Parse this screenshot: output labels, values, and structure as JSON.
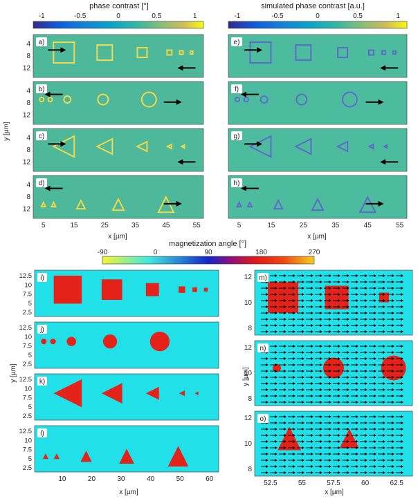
{
  "top_left": {
    "colorbar_title": "phase contrast [°]",
    "colorbar_ticks": [
      "-1",
      "-0.5",
      "0",
      "0.5",
      "1"
    ],
    "xlabel": "x  [µm]",
    "ylabel": "y  [µm]",
    "xticks": [
      "5",
      "15",
      "25",
      "35",
      "45",
      "55"
    ],
    "yticks": [
      "4",
      "8",
      "12"
    ],
    "panels": [
      {
        "label": "a)",
        "shape": "square",
        "arrow1": "right",
        "arrow2": "left"
      },
      {
        "label": "b)",
        "shape": "circle",
        "arrow1": "left",
        "arrow2": "right"
      },
      {
        "label": "c)",
        "shape": "triangle-left",
        "arrow1": "right",
        "arrow2": "left"
      },
      {
        "label": "d)",
        "shape": "triangle-up",
        "arrow1": "left",
        "arrow2": "right"
      }
    ]
  },
  "top_right": {
    "colorbar_title": "simulated phase contrast [a.u.]",
    "colorbar_ticks": [
      "-1",
      "-0.5",
      "0",
      "0.5",
      "1"
    ],
    "xlabel": "x  [µm]",
    "xticks": [
      "5",
      "15",
      "25",
      "35",
      "45",
      "55"
    ],
    "panels": [
      {
        "label": "e)",
        "shape": "square"
      },
      {
        "label": "f)",
        "shape": "circle"
      },
      {
        "label": "g)",
        "shape": "triangle-left"
      },
      {
        "label": "h)",
        "shape": "triangle-up"
      }
    ]
  },
  "middle_colorbar": {
    "title": "magnetization angle [°]",
    "ticks": [
      "-90",
      "0",
      "90",
      "180",
      "270"
    ],
    "colors": [
      "#e8e800",
      "#00e0e8",
      "#1020c0",
      "#e01010",
      "#f0c020"
    ]
  },
  "bottom_left": {
    "xlabel": "x [µm]",
    "ylabel": "y [µm]",
    "xticks": [
      "10",
      "20",
      "30",
      "40",
      "50",
      "60"
    ],
    "yticks": [
      "12.5",
      "10",
      "7.5",
      "5",
      "2.5"
    ],
    "panels": [
      {
        "label": "i)",
        "shape": "square"
      },
      {
        "label": "j)",
        "shape": "circle"
      },
      {
        "label": "k)",
        "shape": "triangle-left"
      },
      {
        "label": "l)",
        "shape": "triangle-up"
      }
    ]
  },
  "bottom_right": {
    "xlabel": "x [µm]",
    "ylabel": "y [µm]",
    "xticks": [
      "52.5",
      "55",
      "57.5",
      "60",
      "62.5"
    ],
    "yticks": [
      "12",
      "10",
      "8"
    ],
    "panels": [
      {
        "label": "m)",
        "shape": "square"
      },
      {
        "label": "n)",
        "shape": "circle"
      },
      {
        "label": "o)",
        "shape": "triangle-up"
      }
    ]
  },
  "chart_data": [
    {
      "type": "heatmap",
      "name": "measured phase contrast maps a)-d)",
      "colorbar_range": [
        -1,
        1
      ],
      "x_ticks": [
        5,
        15,
        25,
        35,
        45,
        55
      ],
      "y_ticks": [
        4,
        8,
        12
      ]
    },
    {
      "type": "heatmap",
      "name": "simulated phase contrast maps e)-h)",
      "colorbar_range": [
        -1,
        1
      ],
      "x_ticks": [
        5,
        15,
        25,
        35,
        45,
        55
      ]
    },
    {
      "type": "heatmap",
      "name": "magnetization angle maps i)-l)",
      "colorbar_range": [
        -90,
        270
      ],
      "x_ticks": [
        10,
        20,
        30,
        40,
        50,
        60
      ],
      "y_ticks": [
        2.5,
        5,
        7.5,
        10,
        12.5
      ]
    },
    {
      "type": "heatmap",
      "name": "magnetization vector maps m)-o)",
      "x_ticks": [
        52.5,
        55,
        57.5,
        60,
        62.5
      ],
      "y_ticks": [
        8,
        10,
        12
      ]
    }
  ],
  "colors": {
    "phase_bg": "#4db89a",
    "phase_yellow": "#f2d84a",
    "phase_blue": "#2a4f9e",
    "sim_bg": "#4dbc9e",
    "mag_bg": "#22e0e8",
    "mag_red": "#e4221a",
    "arrow": "#000000"
  }
}
